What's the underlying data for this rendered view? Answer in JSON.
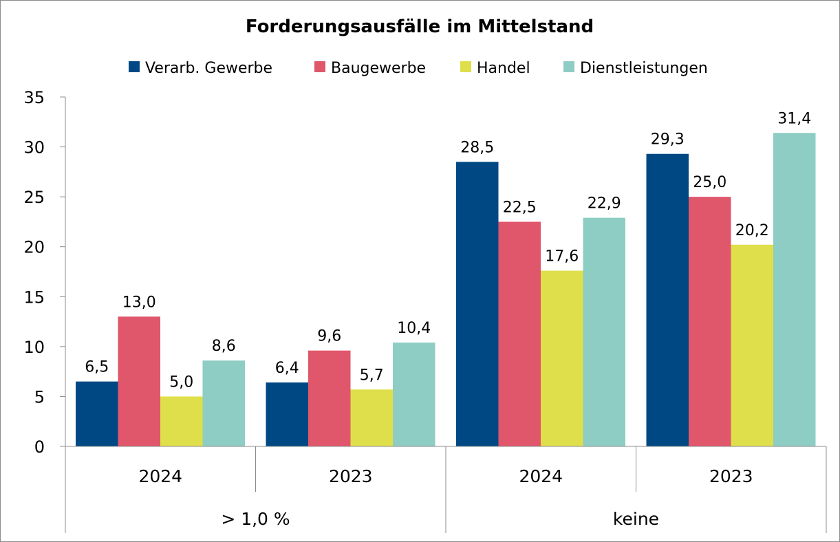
{
  "chart_data": {
    "type": "bar",
    "title": "Forderungsausfälle im Mittelstand",
    "categories": [
      "2024",
      "2023",
      "2024",
      "2023"
    ],
    "groups": [
      {
        "label": "> 1,0 %",
        "categories": [
          "2024",
          "2023"
        ]
      },
      {
        "label": "keine",
        "categories": [
          "2024",
          "2023"
        ]
      }
    ],
    "series": [
      {
        "name": "Verarb. Gewerbe",
        "color": "#004884",
        "values": [
          6.5,
          6.4,
          28.5,
          29.3
        ],
        "labels": [
          "6,5",
          "6,4",
          "28,5",
          "29,3"
        ]
      },
      {
        "name": "Baugewerbe",
        "color": "#e0566b",
        "values": [
          13.0,
          9.6,
          22.5,
          25.0
        ],
        "labels": [
          "13,0",
          "9,6",
          "22,5",
          "25,0"
        ]
      },
      {
        "name": "Handel",
        "color": "#dfdf4b",
        "values": [
          5.0,
          5.7,
          17.6,
          20.2
        ],
        "labels": [
          "5,0",
          "5,7",
          "17,6",
          "20,2"
        ]
      },
      {
        "name": "Dienstleistungen",
        "color": "#8ecdc3",
        "values": [
          8.6,
          10.4,
          22.9,
          31.4
        ],
        "labels": [
          "8,6",
          "10,4",
          "22,9",
          "31,4"
        ]
      }
    ],
    "y_ticks": [
      "0",
      "5",
      "10",
      "15",
      "20",
      "25",
      "30",
      "35"
    ],
    "ylim": [
      0,
      35
    ],
    "xlabel": "",
    "ylabel": "",
    "legend_position": "top",
    "grid": false
  }
}
